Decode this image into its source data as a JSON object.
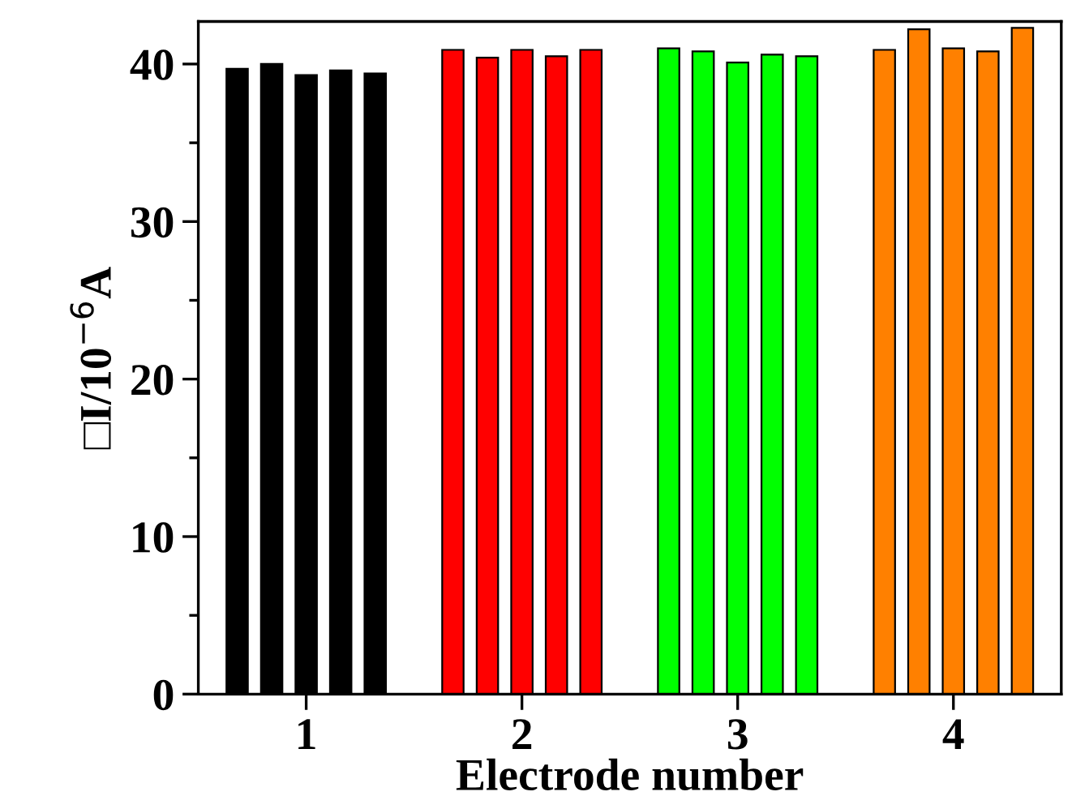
{
  "chart_data": {
    "type": "bar",
    "xlabel": "Electrode number",
    "ylabel": "□I/10$^{−6}$A",
    "categories": [
      "1",
      "2",
      "3",
      "4"
    ],
    "series": [
      {
        "colors": [
          "#000000",
          "#ff0000",
          "#00ff00",
          "#ff8000"
        ],
        "values": [
          39.7,
          40.9,
          41.0,
          40.9
        ]
      },
      {
        "colors": [
          "#000000",
          "#ff0000",
          "#00ff00",
          "#ff8000"
        ],
        "values": [
          40.0,
          40.4,
          40.8,
          42.2
        ]
      },
      {
        "colors": [
          "#000000",
          "#ff0000",
          "#00ff00",
          "#ff8000"
        ],
        "values": [
          39.3,
          40.9,
          40.1,
          41.0
        ]
      },
      {
        "colors": [
          "#000000",
          "#ff0000",
          "#00ff00",
          "#ff8000"
        ],
        "values": [
          39.6,
          40.5,
          40.6,
          40.8
        ]
      },
      {
        "colors": [
          "#000000",
          "#ff0000",
          "#00ff00",
          "#ff8000"
        ],
        "values": [
          39.4,
          40.9,
          40.5,
          42.3
        ]
      }
    ],
    "ylim": [
      0,
      42.7
    ],
    "yticks": [
      0,
      {
        "value": 5,
        "label": null
      },
      10,
      {
        "value": 15,
        "label": null
      },
      20,
      {
        "value": 25,
        "label": null
      },
      30,
      {
        "value": 35,
        "label": null
      },
      40
    ],
    "grid": false,
    "legend": false
  }
}
